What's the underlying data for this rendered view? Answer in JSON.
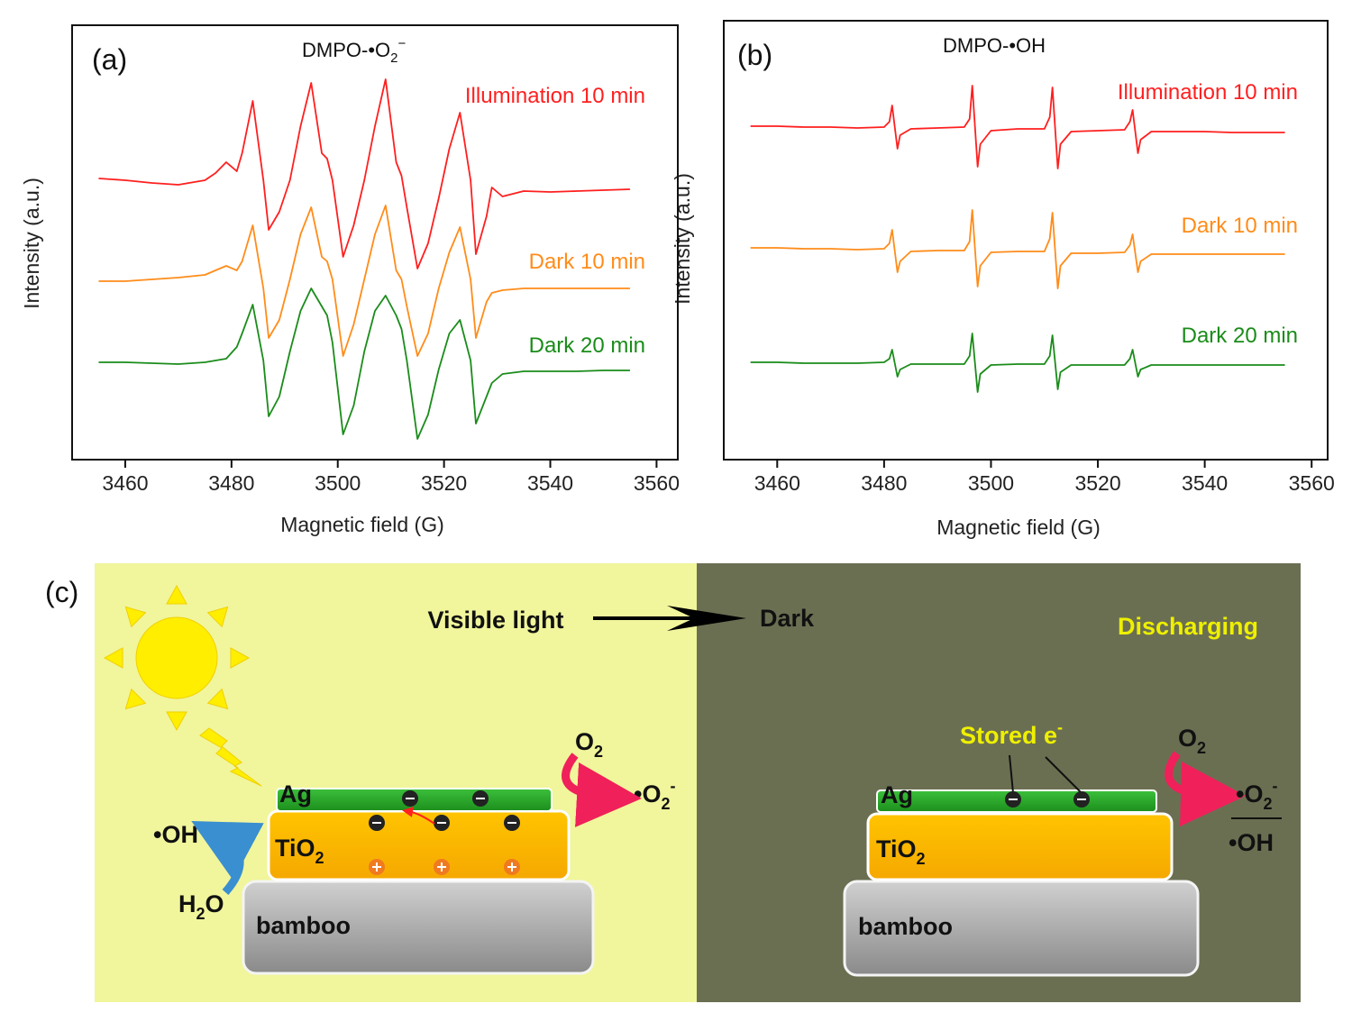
{
  "chart_data": [
    {
      "type": "line",
      "panel_label": "(a)",
      "title": [
        "DMPO-•O",
        "2",
        "−"
      ],
      "x_label": "Magnetic field (G)",
      "y_label": "Intensity (a.u.)",
      "xlim": [
        3450,
        3564
      ],
      "ylim": [
        -10,
        472
      ],
      "xticks": [
        3460,
        3480,
        3500,
        3520,
        3540,
        3560
      ],
      "x": [
        3455,
        3460,
        3465,
        3470,
        3475,
        3477,
        3479,
        3481,
        3482,
        3484,
        3486,
        3487,
        3489,
        3491,
        3493,
        3495,
        3497,
        3498,
        3499,
        3501,
        3503,
        3505,
        3507,
        3509,
        3511,
        3512,
        3513,
        3515,
        3517,
        3519,
        3521,
        3523,
        3525,
        3526,
        3528,
        3529,
        3531,
        3535,
        3540,
        3545,
        3550,
        3555
      ],
      "series": [
        {
          "name": "Illumination 10 min",
          "color": "#ff1f1f",
          "values": [
            302,
            300,
            297,
            295,
            300,
            308,
            320,
            310,
            330,
            388,
            300,
            245,
            265,
            300,
            360,
            408,
            330,
            324,
            300,
            215,
            250,
            300,
            360,
            412,
            320,
            305,
            270,
            202,
            230,
            280,
            335,
            375,
            300,
            218,
            260,
            292,
            282,
            288,
            287,
            288,
            289,
            290
          ]
        },
        {
          "name": "Dark 10 min",
          "color": "#ff8c1a",
          "values": [
            188,
            188,
            190,
            192,
            195,
            200,
            205,
            200,
            210,
            250,
            180,
            125,
            145,
            190,
            240,
            270,
            215,
            210,
            190,
            105,
            140,
            190,
            240,
            272,
            200,
            190,
            160,
            105,
            130,
            180,
            220,
            248,
            190,
            125,
            165,
            175,
            178,
            180,
            180,
            180,
            180,
            180
          ]
        },
        {
          "name": "Dark 20 min",
          "color": "#1a8c1a",
          "values": [
            98,
            98,
            97,
            96,
            98,
            100,
            102,
            115,
            130,
            162,
            100,
            38,
            60,
            110,
            155,
            180,
            160,
            150,
            120,
            18,
            50,
            110,
            155,
            172,
            150,
            135,
            100,
            13,
            40,
            90,
            130,
            145,
            100,
            30,
            60,
            75,
            85,
            88,
            88,
            88,
            89,
            89
          ]
        }
      ]
    },
    {
      "type": "line",
      "panel_label": "(b)",
      "title": [
        "DMPO-•OH"
      ],
      "x_label": "Magnetic field (G)",
      "y_label": "Intensity (a.u.)",
      "xlim": [
        3450,
        3563
      ],
      "ylim": [
        -10,
        477
      ],
      "xticks": [
        3460,
        3480,
        3500,
        3520,
        3540,
        3560
      ],
      "x": [
        3455,
        3460,
        3465,
        3470,
        3475,
        3480,
        3481,
        3481.5,
        3482.5,
        3483,
        3485,
        3490,
        3495,
        3496,
        3496.5,
        3497.5,
        3498,
        3500,
        3505,
        3510,
        3511,
        3511.5,
        3512.5,
        3513,
        3515,
        3520,
        3525,
        3526,
        3526.5,
        3527.5,
        3528,
        3530,
        3535,
        3540,
        3545,
        3550,
        3555
      ],
      "series": [
        {
          "name": "Illumination 10 min",
          "color": "#ff1f1f",
          "values": [
            360,
            360,
            359,
            359,
            358,
            359,
            365,
            383,
            335,
            350,
            357,
            358,
            359,
            368,
            405,
            315,
            340,
            355,
            357,
            357,
            370,
            403,
            313,
            340,
            354,
            355,
            356,
            365,
            378,
            330,
            345,
            354,
            354,
            354,
            353,
            353,
            353
          ]
        },
        {
          "name": "Dark 10 min",
          "color": "#ff8c1a",
          "values": [
            225,
            225,
            224,
            224,
            223,
            224,
            230,
            245,
            198,
            210,
            221,
            222,
            222,
            232,
            267,
            182,
            205,
            220,
            221,
            221,
            235,
            264,
            180,
            205,
            219,
            219,
            220,
            228,
            240,
            198,
            210,
            218,
            218,
            218,
            218,
            218,
            218
          ]
        },
        {
          "name": "Dark 20 min",
          "color": "#1a8c1a",
          "values": [
            98,
            98,
            97,
            97,
            97,
            98,
            102,
            112,
            82,
            90,
            96,
            96,
            96,
            105,
            130,
            65,
            85,
            95,
            96,
            96,
            105,
            128,
            68,
            87,
            95,
            95,
            95,
            102,
            112,
            82,
            90,
            95,
            95,
            95,
            95,
            95,
            95
          ]
        }
      ]
    }
  ],
  "diagram": {
    "panel_label": "(c)",
    "left": {
      "caption": "Visible light",
      "ag": "Ag",
      "tio2": [
        "TiO",
        "2"
      ],
      "bamboo": "bamboo",
      "oh": "•OH",
      "h2o": [
        "H",
        "2",
        "O"
      ],
      "o2": [
        "O",
        "2"
      ],
      "superoxide": [
        "•O",
        "2",
        "-"
      ]
    },
    "right": {
      "caption": "Dark",
      "status": "Discharging",
      "ag": "Ag",
      "tio2": [
        "TiO",
        "2"
      ],
      "bamboo": "bamboo",
      "stored": [
        "Stored e",
        "-"
      ],
      "o2": [
        "O",
        "2"
      ],
      "superoxide": [
        "•O",
        "2",
        "-"
      ],
      "oh": "•OH"
    }
  }
}
